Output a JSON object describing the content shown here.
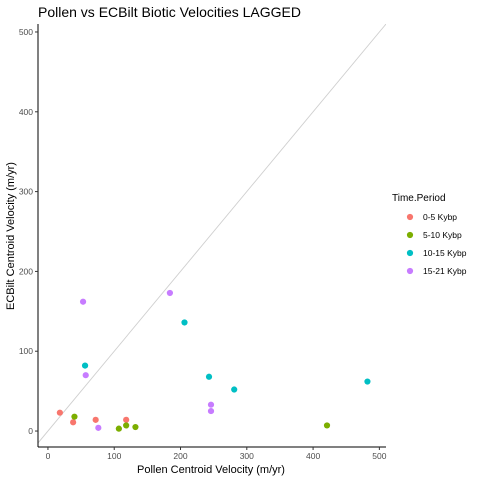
{
  "chart_data": {
    "type": "scatter",
    "title": "Pollen vs ECBilt Biotic Velocities LAGGED",
    "xlabel": "Pollen Centroid Velocity (m/yr)",
    "ylabel": "ECBilt Centroid Velocity (m/yr)",
    "xlim": [
      -15,
      510
    ],
    "ylim": [
      -20,
      510
    ],
    "x_ticks": [
      0,
      100,
      200,
      300,
      400,
      500
    ],
    "y_ticks": [
      0,
      100,
      200,
      300,
      400,
      500
    ],
    "reference_line": "y = x",
    "grid": false,
    "legend": {
      "title": "Time.Period",
      "position": "right"
    },
    "series": [
      {
        "name": "0-5 Kybp",
        "color": "#F8766D",
        "points": [
          [
            18,
            23
          ],
          [
            38,
            11
          ],
          [
            72,
            14
          ],
          [
            118,
            14
          ]
        ]
      },
      {
        "name": "5-10 Kybp",
        "color": "#7CAE00",
        "points": [
          [
            40,
            18
          ],
          [
            107,
            3
          ],
          [
            118,
            7
          ],
          [
            132,
            5
          ],
          [
            421,
            7
          ]
        ]
      },
      {
        "name": "10-15 Kybp",
        "color": "#00BFC4",
        "points": [
          [
            56,
            82
          ],
          [
            206,
            136
          ],
          [
            243,
            68
          ],
          [
            281,
            52
          ],
          [
            482,
            62
          ]
        ]
      },
      {
        "name": "15-21 Kybp",
        "color": "#C77CFF",
        "points": [
          [
            53,
            162
          ],
          [
            57,
            70
          ],
          [
            76,
            4
          ],
          [
            184,
            173
          ],
          [
            246,
            33
          ],
          [
            246,
            25
          ]
        ]
      }
    ]
  }
}
